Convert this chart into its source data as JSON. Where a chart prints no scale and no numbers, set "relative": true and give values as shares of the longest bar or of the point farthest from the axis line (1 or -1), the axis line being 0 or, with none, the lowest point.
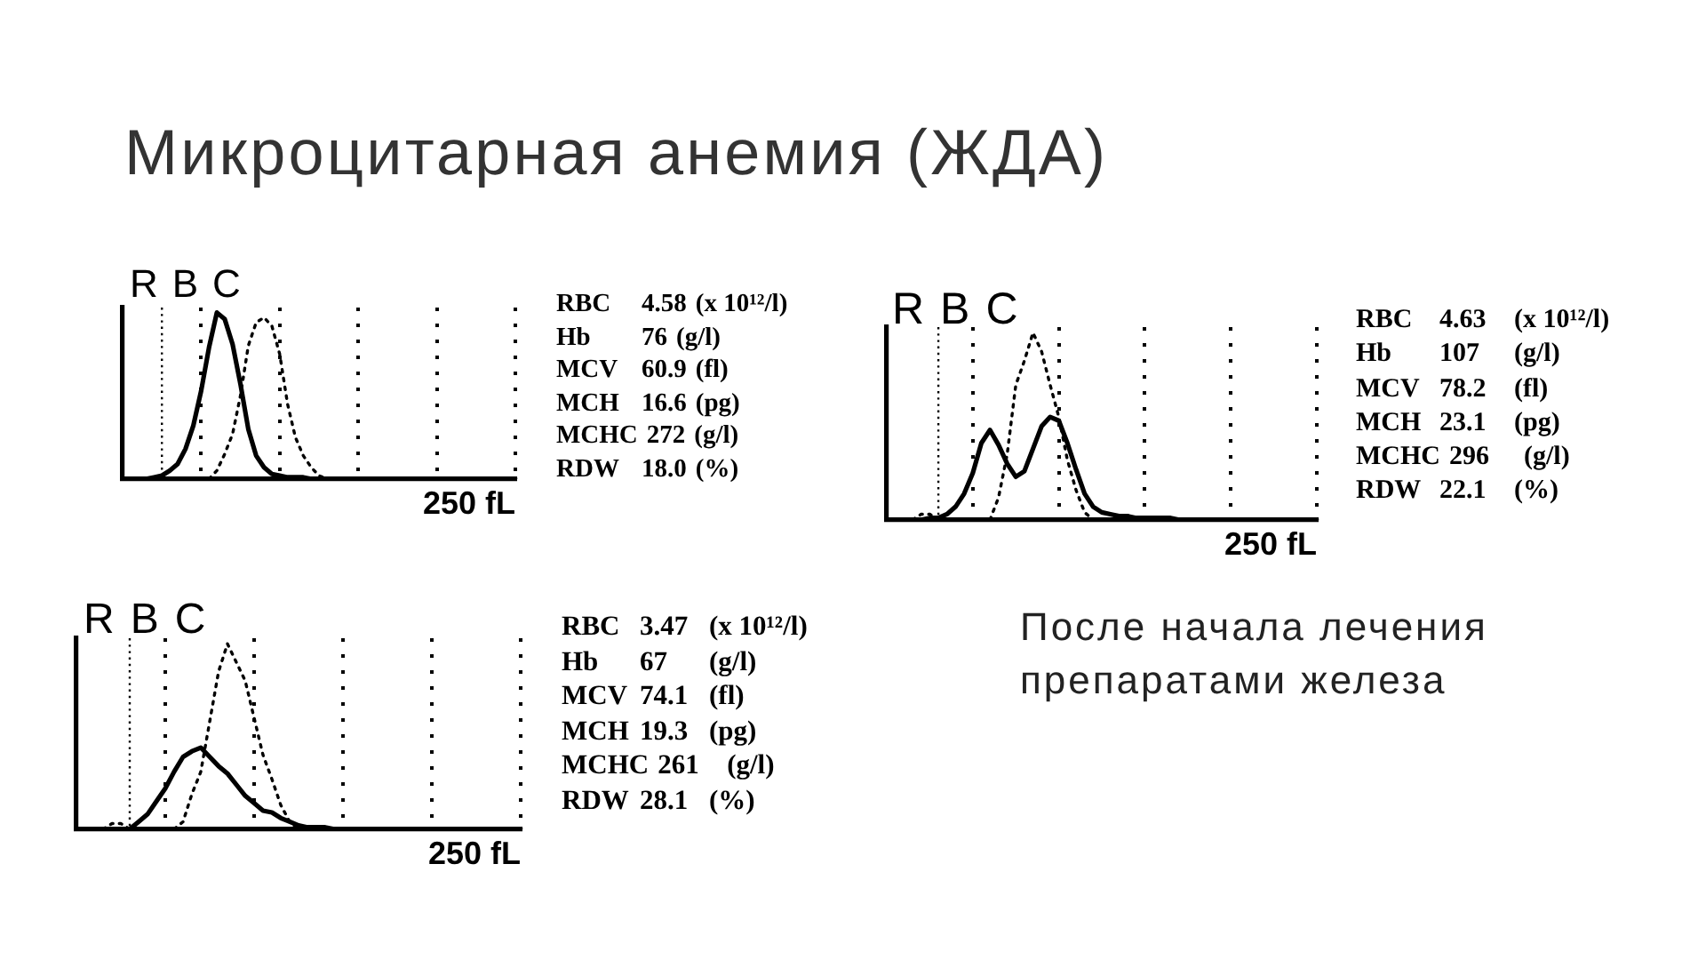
{
  "chart_data": [
    {
      "type": "other",
      "title": "Микроцитарная анемия (ЖДА)"
    },
    {
      "type": "line",
      "title": "RBC",
      "xlabel": "250 fL",
      "relative": true,
      "grid": "x",
      "categories": [
        null,
        null,
        null,
        null,
        null,
        null,
        null,
        null,
        null,
        null,
        null,
        null,
        null,
        null,
        null,
        null,
        null,
        null,
        null,
        null,
        null,
        null,
        null,
        null,
        null,
        null,
        null,
        null,
        null,
        null,
        null,
        null,
        null,
        null,
        null,
        null,
        null,
        null,
        null,
        null,
        null,
        null,
        null,
        null,
        null,
        null,
        null,
        null,
        null,
        null,
        null
      ],
      "series": [
        {
          "color": "#000000",
          "line_style": "solid",
          "values": [
            null,
            null,
            null,
            0,
            0.01,
            0.02,
            0.05,
            0.09,
            0.18,
            0.32,
            0.53,
            0.79,
            1,
            0.96,
            0.81,
            0.57,
            0.3,
            0.14,
            0.07,
            0.03,
            0.02,
            0.01,
            0.01,
            0.01,
            0,
            0,
            0,
            0,
            0,
            0,
            0,
            0,
            0,
            0,
            0,
            0,
            0,
            0,
            0,
            0,
            0,
            0,
            0,
            0,
            0,
            0,
            0,
            0,
            0,
            0,
            0
          ]
        },
        {
          "color": "#000000",
          "line_style": "dotted",
          "values": [
            null,
            null,
            null,
            null,
            null,
            null,
            null,
            null,
            null,
            null,
            null,
            0,
            0.05,
            0.15,
            0.27,
            0.5,
            0.8,
            0.94,
            0.97,
            0.92,
            0.75,
            0.45,
            0.25,
            0.14,
            0.07,
            0.02,
            0,
            null,
            null,
            null,
            null,
            null,
            null,
            null,
            null,
            null,
            null,
            null,
            null,
            null,
            null,
            null,
            null,
            null,
            null,
            null,
            null,
            null,
            null,
            null,
            null
          ]
        }
      ],
      "annotations": [
        "RBC 4.58 (x 10¹²/l)",
        "Hb 76 (g/l)",
        "MCV 60.9 (fl)",
        "MCH 16.6 (pg)",
        "MCHC 272 (g/l)",
        "RDW 18.0 (%)"
      ]
    },
    {
      "type": "line",
      "title": "RBC",
      "xlabel": "250 fL",
      "relative": true,
      "grid": "x",
      "categories": [
        null,
        null,
        null,
        null,
        null,
        null,
        null,
        null,
        null,
        null,
        null,
        null,
        null,
        null,
        null,
        null,
        null,
        null,
        null,
        null,
        null,
        null,
        null,
        null,
        null,
        null,
        null,
        null,
        null,
        null,
        null,
        null,
        null,
        null,
        null,
        null,
        null,
        null,
        null,
        null,
        null,
        null,
        null,
        null,
        null,
        null,
        null,
        null,
        null,
        null,
        null
      ],
      "series": [
        {
          "color": "#000000",
          "line_style": "solid",
          "values": [
            null,
            null,
            null,
            0,
            0,
            0.01,
            0.01,
            0.03,
            0.07,
            0.14,
            0.25,
            0.41,
            0.48,
            0.4,
            0.3,
            0.23,
            0.26,
            0.38,
            0.5,
            0.55,
            0.53,
            0.41,
            0.27,
            0.14,
            0.07,
            0.04,
            0.03,
            0.02,
            0.02,
            0.01,
            0.01,
            0.01,
            0.01,
            0.01,
            0,
            0,
            0,
            0,
            0,
            0,
            0,
            0,
            0,
            0,
            0,
            0,
            0,
            0,
            0,
            0,
            0
          ]
        },
        {
          "color": "#000000",
          "line_style": "dotted",
          "values": [
            null,
            null,
            null,
            0,
            0.03,
            0.03,
            0,
            null,
            null,
            null,
            null,
            null,
            0,
            0.12,
            0.35,
            0.72,
            0.85,
            1,
            0.9,
            0.72,
            0.55,
            0.32,
            0.16,
            0.04,
            0,
            null,
            null,
            null,
            null,
            null,
            null,
            null,
            null,
            null,
            null,
            null,
            null,
            null,
            null,
            null,
            null,
            null,
            null,
            null,
            null,
            null,
            null,
            null,
            null,
            null,
            null
          ]
        }
      ],
      "annotations": [
        "RBC 4.63 (x 10¹²/l)",
        "Hb 107 (g/l)",
        "MCV 78.2 (fl)",
        "MCH 23.1 (pg)",
        "MCHC 296 (g/l)",
        "RDW 22.1 (%)"
      ]
    },
    {
      "type": "line",
      "title": "RBC",
      "xlabel": "250 fL",
      "relative": true,
      "grid": "x",
      "categories": [
        null,
        null,
        null,
        null,
        null,
        null,
        null,
        null,
        null,
        null,
        null,
        null,
        null,
        null,
        null,
        null,
        null,
        null,
        null,
        null,
        null,
        null,
        null,
        null,
        null,
        null,
        null,
        null,
        null,
        null,
        null,
        null,
        null,
        null,
        null,
        null,
        null,
        null,
        null,
        null,
        null,
        null,
        null,
        null,
        null,
        null,
        null,
        null,
        null,
        null,
        null
      ],
      "series": [
        {
          "color": "#000000",
          "line_style": "solid",
          "values": [
            null,
            null,
            null,
            null,
            null,
            null,
            0,
            0.04,
            0.08,
            0.15,
            0.22,
            0.31,
            0.39,
            0.42,
            0.44,
            0.39,
            0.34,
            0.3,
            0.24,
            0.18,
            0.14,
            0.1,
            0.09,
            0.06,
            0.04,
            0.02,
            0.01,
            0.01,
            0.01,
            0,
            0,
            0,
            0,
            0,
            0,
            0,
            0,
            0,
            0,
            0,
            0,
            0,
            0,
            0,
            0,
            0,
            0,
            0,
            0,
            0,
            0
          ]
        },
        {
          "color": "#000000",
          "line_style": "dotted",
          "values": [
            null,
            null,
            null,
            0,
            0.03,
            0.03,
            0,
            null,
            null,
            null,
            null,
            0,
            0.04,
            0.19,
            0.31,
            0.58,
            0.85,
            1,
            0.9,
            0.8,
            0.6,
            0.4,
            0.27,
            0.13,
            0.04,
            0,
            null,
            null,
            null,
            null,
            null,
            null,
            null,
            null,
            null,
            null,
            null,
            null,
            null,
            null,
            null,
            null,
            null,
            null,
            null,
            null,
            null,
            null,
            null,
            null,
            null
          ]
        }
      ],
      "annotations": [
        "RBC 3.47 (x 10¹²/l)",
        "Hb 67 (g/l)",
        "MCV 74.1 (fl)",
        "MCH 19.3 (pg)",
        "MCHC 261 (g/l)",
        "RDW 28.1 (%)"
      ]
    },
    {
      "type": "other",
      "annotations": [
        "После начала лечения препаратами железа"
      ]
    }
  ]
}
